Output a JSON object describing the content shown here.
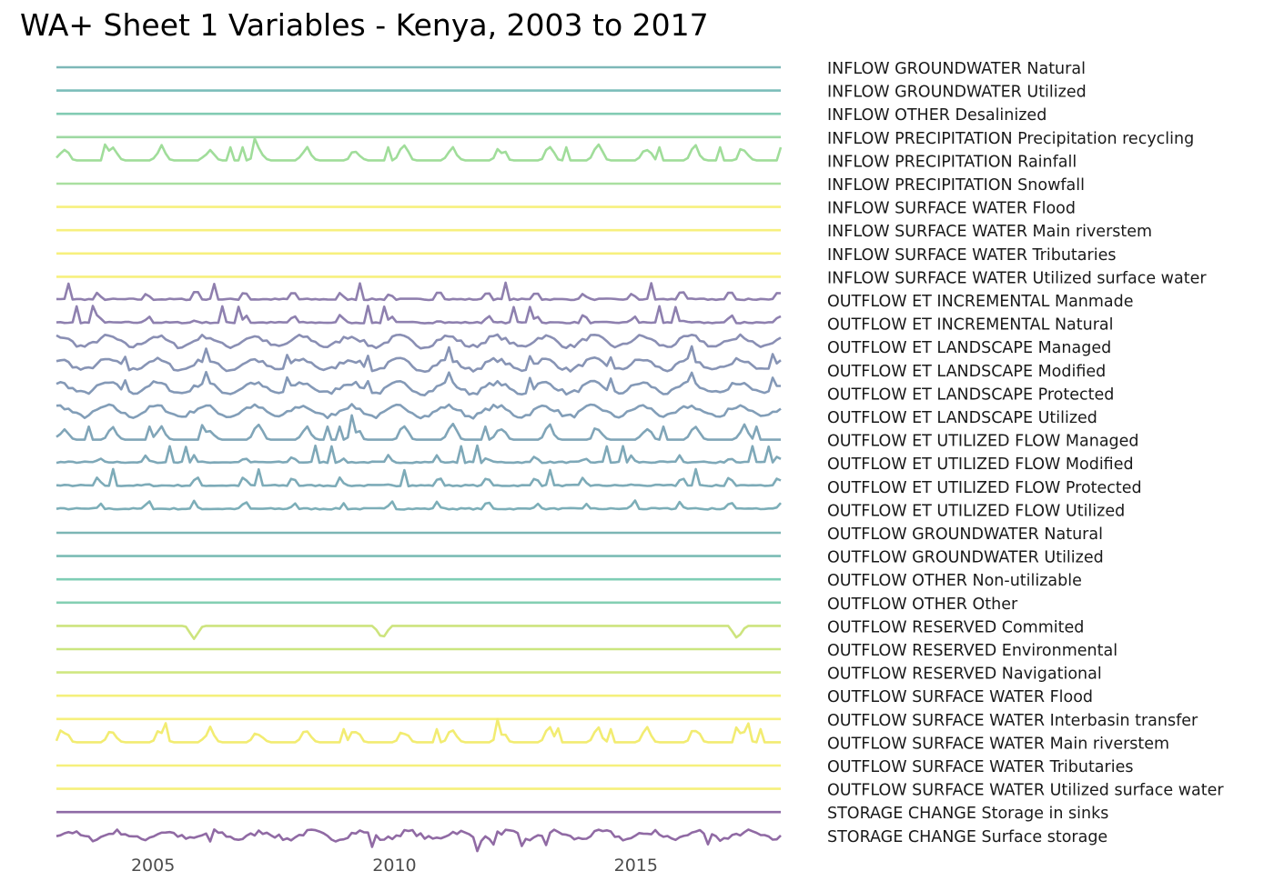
{
  "chart_data": {
    "type": "line",
    "title": "WA+ Sheet 1 Variables - Kenya, 2003 to 2017",
    "xlabel": "",
    "ylabel": "",
    "xlim": [
      2003.0,
      2018.0
    ],
    "x_ticks": [
      2005,
      2010,
      2015
    ],
    "grid": false,
    "legend": "none",
    "series_label_position": "right",
    "series": [
      {
        "name": "INFLOW GROUNDWATER Natural",
        "color": "#7db8b8",
        "pattern": "flat",
        "values": []
      },
      {
        "name": "INFLOW GROUNDWATER Utilized",
        "color": "#7bbdba",
        "pattern": "flat",
        "values": []
      },
      {
        "name": "INFLOW OTHER Desalinized",
        "color": "#82cbb3",
        "pattern": "flat",
        "values": []
      },
      {
        "name": "INFLOW PRECIPITATION Precipitation recycling",
        "color": "#9dd9a2",
        "pattern": "flat",
        "values": []
      },
      {
        "name": "INFLOW PRECIPITATION Rainfall",
        "color": "#a0dd9a",
        "pattern": "seasonal-green",
        "values": []
      },
      {
        "name": "INFLOW PRECIPITATION Snowfall",
        "color": "#a9e0a0",
        "pattern": "flat",
        "values": []
      },
      {
        "name": "INFLOW SURFACE WATER Flood",
        "color": "#f7f07e",
        "pattern": "flat",
        "values": []
      },
      {
        "name": "INFLOW SURFACE WATER Main riverstem",
        "color": "#f7f07e",
        "pattern": "flat",
        "values": []
      },
      {
        "name": "INFLOW SURFACE WATER Tributaries",
        "color": "#f7f07e",
        "pattern": "flat",
        "values": []
      },
      {
        "name": "INFLOW SURFACE WATER Utilized surface water",
        "color": "#f7f07e",
        "pattern": "flat",
        "values": []
      },
      {
        "name": "OUTFLOW ET INCREMENTAL Manmade",
        "color": "#8f7fae",
        "pattern": "spiky",
        "values": []
      },
      {
        "name": "OUTFLOW ET INCREMENTAL Natural",
        "color": "#8e80af",
        "pattern": "spiky",
        "values": []
      },
      {
        "name": "OUTFLOW ET LANDSCAPE Managed",
        "color": "#8a8fb4",
        "pattern": "wavy",
        "values": []
      },
      {
        "name": "OUTFLOW ET LANDSCAPE Modified",
        "color": "#8794b5",
        "pattern": "wavy",
        "values": []
      },
      {
        "name": "OUTFLOW ET LANDSCAPE Protected",
        "color": "#8499b7",
        "pattern": "wavy",
        "values": []
      },
      {
        "name": "OUTFLOW ET LANDSCAPE Utilized",
        "color": "#829eb8",
        "pattern": "wavy",
        "values": []
      },
      {
        "name": "OUTFLOW ET UTILIZED FLOW Managed",
        "color": "#80a5b8",
        "pattern": "seasonal",
        "values": []
      },
      {
        "name": "OUTFLOW ET UTILIZED FLOW Modified",
        "color": "#7ea8b8",
        "pattern": "spiky",
        "values": []
      },
      {
        "name": "OUTFLOW ET UTILIZED FLOW Protected",
        "color": "#7dabb8",
        "pattern": "spiky",
        "values": []
      },
      {
        "name": "OUTFLOW ET UTILIZED FLOW Utilized",
        "color": "#7caeb8",
        "pattern": "spiky",
        "values": []
      },
      {
        "name": "OUTFLOW GROUNDWATER Natural",
        "color": "#7cb6b5",
        "pattern": "flat",
        "values": []
      },
      {
        "name": "OUTFLOW GROUNDWATER Utilized",
        "color": "#7bbcb5",
        "pattern": "flat",
        "values": []
      },
      {
        "name": "OUTFLOW OTHER Non-utilizable",
        "color": "#7fcdb5",
        "pattern": "flat",
        "values": []
      },
      {
        "name": "OUTFLOW OTHER Other",
        "color": "#84cfb3",
        "pattern": "flat",
        "values": []
      },
      {
        "name": "OUTFLOW RESERVED Commited",
        "color": "#cde47e",
        "pattern": "dips",
        "values": []
      },
      {
        "name": "OUTFLOW RESERVED Environmental",
        "color": "#cbe680",
        "pattern": "flat",
        "values": []
      },
      {
        "name": "OUTFLOW RESERVED Navigational",
        "color": "#d0e782",
        "pattern": "flat",
        "values": []
      },
      {
        "name": "OUTFLOW SURFACE WATER Flood",
        "color": "#f4f07c",
        "pattern": "flat",
        "values": []
      },
      {
        "name": "OUTFLOW SURFACE WATER Interbasin transfer",
        "color": "#f6f07c",
        "pattern": "flat",
        "values": []
      },
      {
        "name": "OUTFLOW SURFACE WATER Main riverstem",
        "color": "#f2ec72",
        "pattern": "seasonal-yellow",
        "values": []
      },
      {
        "name": "OUTFLOW SURFACE WATER Tributaries",
        "color": "#f6f07c",
        "pattern": "flat",
        "values": []
      },
      {
        "name": "OUTFLOW SURFACE WATER Utilized surface water",
        "color": "#f6f07c",
        "pattern": "flat",
        "values": []
      },
      {
        "name": "STORAGE CHANGE Storage in sinks",
        "color": "#8e6aa6",
        "pattern": "flat",
        "values": []
      },
      {
        "name": "STORAGE CHANGE Surface storage",
        "color": "#906aa4",
        "pattern": "storage",
        "values": []
      }
    ]
  }
}
